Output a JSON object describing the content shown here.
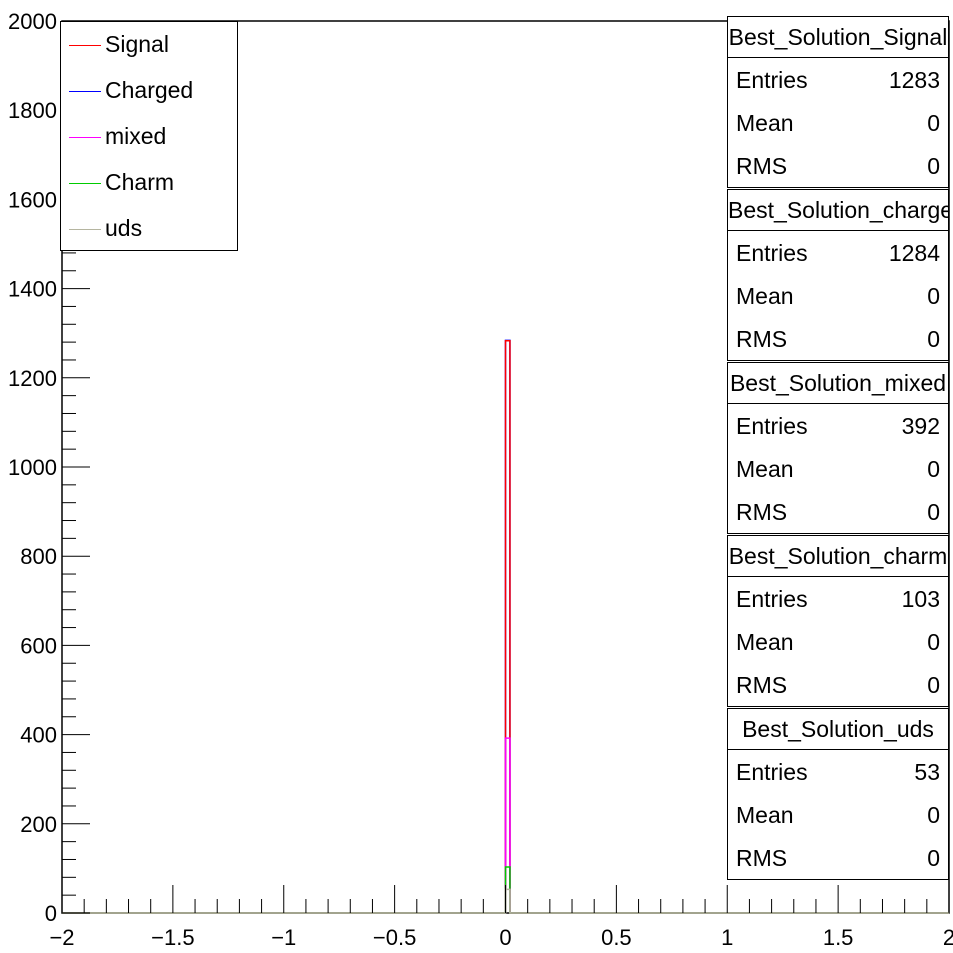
{
  "chart_data": {
    "type": "histogram",
    "xlim": [
      -2,
      2
    ],
    "ylim": [
      0,
      2000
    ],
    "x_ticks": [
      "-2",
      "-1.5",
      "-1",
      "-0.5",
      "0",
      "0.5",
      "1",
      "1.5",
      "2"
    ],
    "y_ticks": [
      "0",
      "200",
      "400",
      "600",
      "800",
      "1000",
      "1200",
      "1400",
      "1600",
      "1800",
      "2000"
    ],
    "bin": [
      0,
      0.02
    ],
    "series": [
      {
        "name": "Signal",
        "color": "#ff0000",
        "value": 1283
      },
      {
        "name": "Charged",
        "color": "#0000ff",
        "value": 1284
      },
      {
        "name": "mixed",
        "color": "#ff00ff",
        "value": 392
      },
      {
        "name": "Charm",
        "color": "#00cc00",
        "value": 103
      },
      {
        "name": "uds",
        "color": "#b5b5a0",
        "value": 53
      }
    ],
    "legend_position": "top-left",
    "stats_boxes": [
      {
        "title": "Best_Solution_Signal",
        "entries": "1283",
        "mean": "0",
        "rms": "0"
      },
      {
        "title": "Best_Solution_charged",
        "entries": "1284",
        "mean": "0",
        "rms": "0"
      },
      {
        "title": "Best_Solution_mixed",
        "entries": "392",
        "mean": "0",
        "rms": "0"
      },
      {
        "title": "Best_Solution_charm",
        "entries": "103",
        "mean": "0",
        "rms": "0"
      },
      {
        "title": "Best_Solution_uds",
        "entries": "53",
        "mean": "0",
        "rms": "0"
      }
    ],
    "stats_labels": {
      "entries": "Entries",
      "mean": "Mean",
      "rms": "RMS"
    }
  }
}
